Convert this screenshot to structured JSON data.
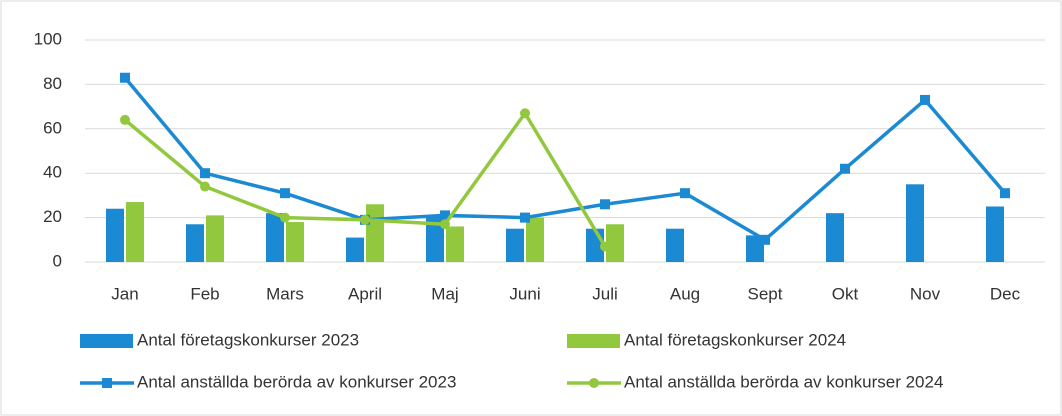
{
  "chart_data": {
    "type": "bar",
    "categories": [
      "Jan",
      "Feb",
      "Mars",
      "April",
      "Maj",
      "Juni",
      "Juli",
      "Aug",
      "Sept",
      "Okt",
      "Nov",
      "Dec"
    ],
    "series": [
      {
        "name": "Antal företagskonkurser 2023",
        "type": "bar",
        "color": "#1c8ad3",
        "values": [
          24,
          17,
          22,
          11,
          21,
          15,
          15,
          15,
          12,
          22,
          35,
          25
        ]
      },
      {
        "name": "Antal företagskonkurser 2024",
        "type": "bar",
        "color": "#92c83e",
        "values": [
          27,
          21,
          18,
          26,
          16,
          20,
          17,
          null,
          null,
          null,
          null,
          null
        ]
      },
      {
        "name": "Antal anställda berörda av konkurser 2023",
        "type": "line",
        "color": "#1c8ad3",
        "values": [
          83,
          40,
          31,
          19,
          21,
          20,
          26,
          31,
          10,
          42,
          73,
          31
        ]
      },
      {
        "name": "Antal anställda berörda av konkurser 2024",
        "type": "line",
        "color": "#92c83e",
        "values": [
          64,
          34,
          20,
          19,
          17,
          67,
          7,
          null,
          null,
          null,
          null,
          null
        ]
      }
    ],
    "ylim": [
      0,
      100
    ],
    "yticks": [
      0,
      20,
      40,
      60,
      80,
      100
    ],
    "grid": true
  }
}
